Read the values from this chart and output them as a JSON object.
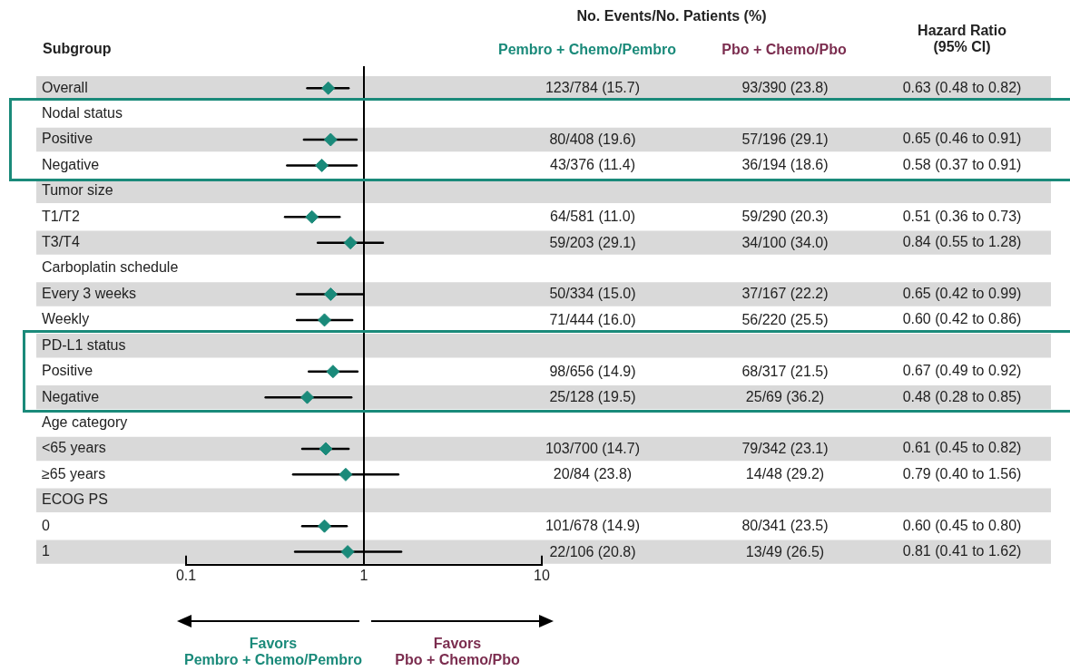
{
  "chart_data": {
    "type": "scatter",
    "orientation": "horizontal",
    "ylabel": "Subgroup",
    "categories": [
      "Overall",
      "Nodal status",
      "Positive",
      "Negative",
      "Tumor size",
      "T1/T2",
      "T3/T4",
      "Carboplatin schedule",
      "Every 3 weeks",
      "Weekly",
      "PD-L1 status",
      "Positive",
      "Negative",
      "Age category",
      "<65 years",
      "≥65 years",
      "ECOG PS",
      "0",
      "1"
    ],
    "values": [
      0.63,
      null,
      0.65,
      0.58,
      null,
      0.51,
      0.84,
      null,
      0.65,
      0.6,
      null,
      0.67,
      0.48,
      null,
      0.61,
      0.79,
      null,
      0.6,
      0.81
    ],
    "errors": [
      [
        0.48,
        0.82
      ],
      null,
      [
        0.46,
        0.91
      ],
      [
        0.37,
        0.91
      ],
      null,
      [
        0.36,
        0.73
      ],
      [
        0.55,
        1.28
      ],
      null,
      [
        0.42,
        0.99
      ],
      [
        0.42,
        0.86
      ],
      null,
      [
        0.49,
        0.92
      ],
      [
        0.28,
        0.85
      ],
      null,
      [
        0.45,
        0.82
      ],
      [
        0.4,
        1.56
      ],
      null,
      [
        0.45,
        0.8
      ],
      [
        0.41,
        1.62
      ]
    ],
    "value_labels": [
      "0.63 (0.48 to 0.82)",
      null,
      "0.65 (0.46 to 0.91)",
      "0.58 (0.37 to 0.91)",
      null,
      "0.51 (0.36 to 0.73)",
      "0.84 (0.55 to 1.28)",
      null,
      "0.65 (0.42 to 0.99)",
      "0.60 (0.42 to 0.86)",
      null,
      "0.67 (0.49 to 0.92)",
      "0.48 (0.28 to 0.85)",
      null,
      "0.61 (0.45 to 0.82)",
      "0.79 (0.40 to 1.56)",
      null,
      "0.60 (0.45 to 0.80)",
      "0.81 (0.41 to 1.62)"
    ],
    "color": "#1a8a7a",
    "marker": "diamond",
    "log": "x",
    "xlim": [
      0.1,
      10
    ],
    "xticks": [
      0.1,
      1,
      10
    ],
    "ref_lines": [
      {
        "axis": "x",
        "value": 1
      }
    ],
    "annotations": [
      "No. Events/No. Patients (%)",
      "Pembro + Chemo/Pembro",
      "Pbo + Chemo/Pbo",
      "Hazard Ratio\n(95% CI)",
      "Favors\nPembro + Chemo/Pembro",
      "Favors\nPbo + Chemo/Pbo",
      "123/784 (15.7)",
      "93/390 (23.8)",
      "80/408 (19.6)",
      "57/196 (29.1)",
      "43/376 (11.4)",
      "36/194 (18.6)",
      "64/581 (11.0)",
      "59/290 (20.3)",
      "59/203 (29.1)",
      "34/100 (34.0)",
      "50/334 (15.0)",
      "37/167 (22.2)",
      "71/444 (16.0)",
      "56/220 (25.5)",
      "98/656 (14.9)",
      "68/317 (21.5)",
      "25/128 (19.5)",
      "25/69 (36.2)",
      "103/700 (14.7)",
      "79/342 (23.1)",
      "20/84 (23.8)",
      "14/48 (29.2)",
      "101/678 (14.9)",
      "80/341 (23.5)",
      "22/106 (20.8)",
      "13/49 (26.5)"
    ]
  }
}
